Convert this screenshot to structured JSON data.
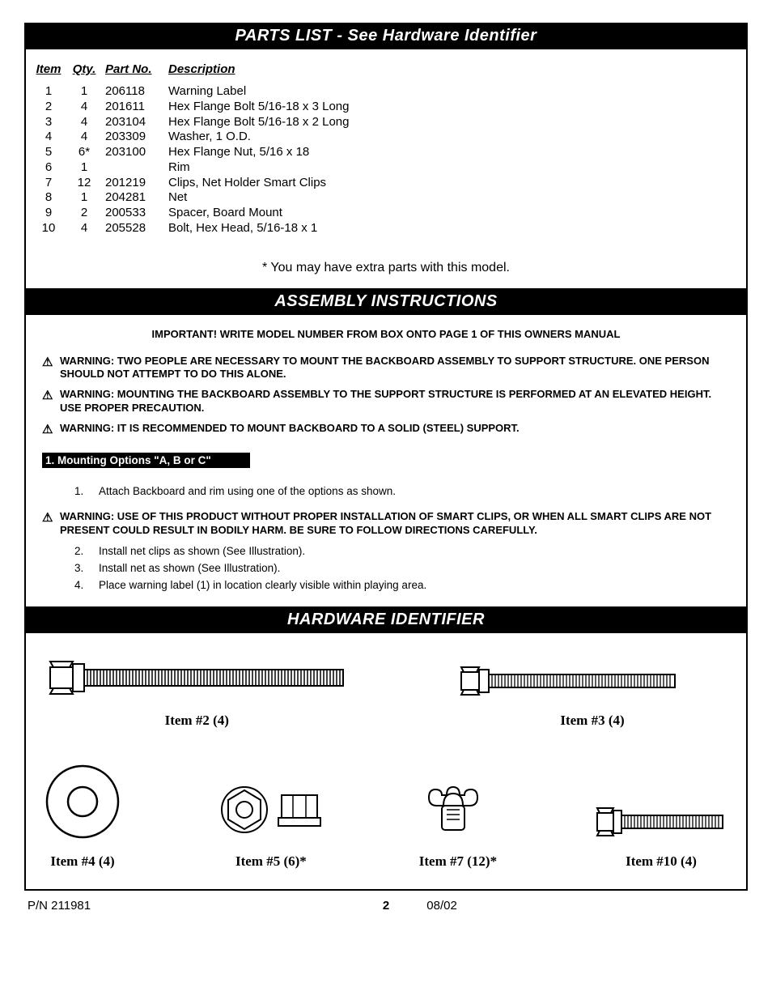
{
  "headers": {
    "parts_list": "PARTS LIST - See Hardware Identifier",
    "assembly": "ASSEMBLY INSTRUCTIONS",
    "hardware": "HARDWARE IDENTIFIER"
  },
  "parts_table": {
    "columns": {
      "item": "Item",
      "qty": "Qty.",
      "part_no": "Part No.",
      "description": "Description"
    },
    "rows": [
      {
        "item": "1",
        "qty": "1",
        "part_no": "206118",
        "desc": "Warning Label"
      },
      {
        "item": "2",
        "qty": "4",
        "part_no": "201611",
        "desc": "Hex Flange Bolt 5/16-18 x 3 Long"
      },
      {
        "item": "3",
        "qty": "4",
        "part_no": "203104",
        "desc": "Hex Flange Bolt 5/16-18 x 2 Long"
      },
      {
        "item": "4",
        "qty": "4",
        "part_no": "203309",
        "desc": "Washer, 1 O.D."
      },
      {
        "item": "5",
        "qty": "6*",
        "part_no": "203100",
        "desc": "Hex Flange Nut, 5/16 x 18"
      },
      {
        "item": "6",
        "qty": "1",
        "part_no": "",
        "desc": "Rim"
      },
      {
        "item": "7",
        "qty": "12",
        "part_no": "201219",
        "desc": "Clips, Net Holder Smart Clips"
      },
      {
        "item": "8",
        "qty": "1",
        "part_no": "204281",
        "desc": "Net"
      },
      {
        "item": "9",
        "qty": "2",
        "part_no": "200533",
        "desc": "Spacer, Board Mount"
      },
      {
        "item": "10",
        "qty": "4",
        "part_no": "205528",
        "desc": "Bolt, Hex Head, 5/16-18 x 1"
      }
    ],
    "footnote": "*  You may have extra parts with this model."
  },
  "assembly": {
    "important": "IMPORTANT!   WRITE MODEL NUMBER FROM BOX ONTO PAGE 1 OF THIS OWNERS MANUAL",
    "warnings_top": [
      "WARNING: TWO PEOPLE ARE NECESSARY TO MOUNT THE BACKBOARD ASSEMBLY TO SUPPORT STRUCTURE.  ONE PERSON SHOULD NOT ATTEMPT TO DO THIS ALONE.",
      "WARNING: MOUNTING THE BACKBOARD ASSEMBLY TO THE SUPPORT STRUCTURE IS PERFORMED AT AN ELEVATED HEIGHT. USE PROPER PRECAUTION.",
      "WARNING: IT IS RECOMMENDED TO MOUNT BACKBOARD TO A SOLID (STEEL) SUPPORT."
    ],
    "subheader": "1. Mounting Options \"A, B or C\"",
    "steps_top": [
      {
        "n": "1.",
        "t": "Attach Backboard and rim using one of the options as shown."
      }
    ],
    "warning_mid": "WARNING:  USE OF THIS PRODUCT WITHOUT PROPER INSTALLATION OF SMART CLIPS, OR WHEN ALL SMART CLIPS ARE NOT PRESENT COULD RESULT IN BODILY HARM. BE SURE TO FOLLOW DIRECTIONS CAREFULLY.",
    "steps_bottom": [
      {
        "n": "2.",
        "t": "Install net clips as shown (See Illustration)."
      },
      {
        "n": "3.",
        "t": "Install net as shown (See Illustration)."
      },
      {
        "n": "4.",
        "t": "Place warning label (1) in location clearly visible within playing area."
      }
    ]
  },
  "hardware": {
    "items": [
      {
        "label": "Item #2 (4)"
      },
      {
        "label": "Item #3 (4)"
      },
      {
        "label": "Item #4 (4)"
      },
      {
        "label": "Item #5 (6)*"
      },
      {
        "label": "Item #7 (12)*"
      },
      {
        "label": "Item #10 (4)"
      }
    ]
  },
  "footer": {
    "pn": "P/N 211981",
    "date": "08/02",
    "page": "2"
  },
  "colors": {
    "black": "#000000",
    "white": "#ffffff"
  }
}
